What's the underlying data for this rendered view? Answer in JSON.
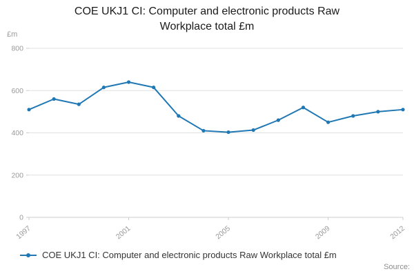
{
  "title": "COE UKJ1 CI: Computer and electronic products Raw Workplace total £m",
  "source_label": "Source:",
  "legend": {
    "label": "COE UKJ1 CI: Computer and electronic products Raw Workplace total £m"
  },
  "colors": {
    "line": "#1f77b4",
    "grid": "#e0e0e0",
    "axis": "#cccccc",
    "axis_text": "#999999",
    "title_text": "#1a1a1a",
    "legend_text": "#333333",
    "source_text": "#8c8c8c"
  },
  "chart_data": {
    "type": "line",
    "title": "COE UKJ1 CI: Computer and electronic products Raw Workplace total £m",
    "xlabel": "",
    "ylabel": "£m",
    "x": [
      1997,
      1998,
      1999,
      2000,
      2001,
      2002,
      2003,
      2004,
      2005,
      2006,
      2007,
      2008,
      2009,
      2010,
      2011,
      2012
    ],
    "values": [
      510,
      560,
      535,
      615,
      640,
      615,
      480,
      410,
      403,
      413,
      460,
      520,
      450,
      480,
      500,
      510
    ],
    "series_name": "COE UKJ1 CI: Computer and electronic products Raw Workplace total £m",
    "xticks": [
      1997,
      2001,
      2005,
      2009,
      2012
    ],
    "yticks": [
      0,
      200,
      400,
      600,
      800
    ],
    "ylim": [
      0,
      800
    ],
    "grid": "horizontal",
    "legend_position": "bottom-left",
    "markers": true
  }
}
